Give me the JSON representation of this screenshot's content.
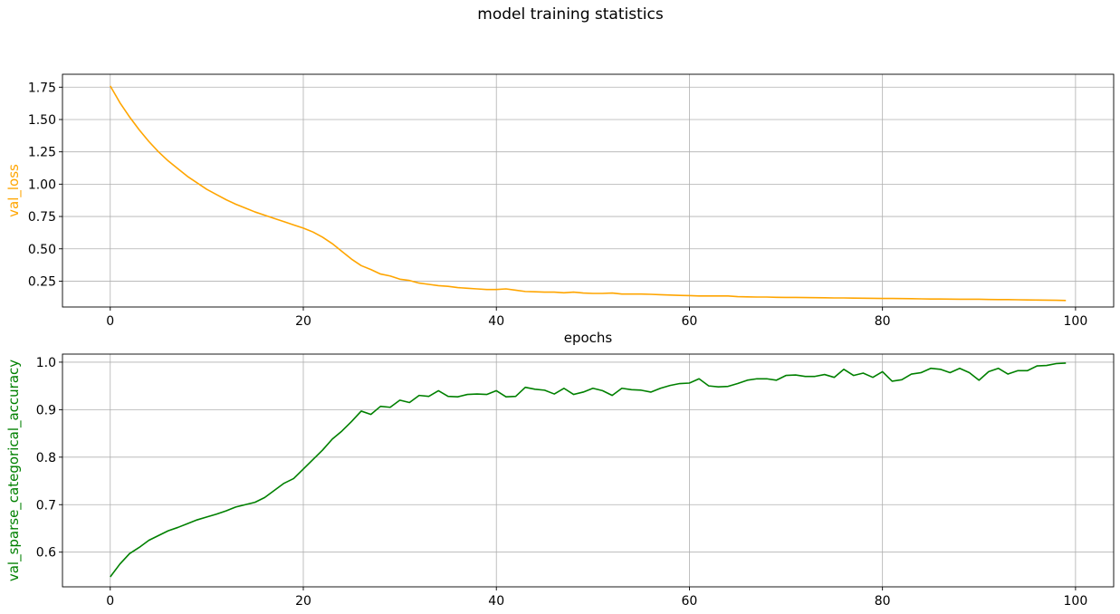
{
  "figure_title": "model training statistics",
  "chart_data": [
    {
      "type": "line",
      "title": "",
      "xlabel": "epochs",
      "ylabel": "val_loss",
      "xlim": [
        -4.95,
        103.95
      ],
      "ylim": [
        0.05,
        1.85
      ],
      "xticks": [
        0,
        20,
        40,
        60,
        80,
        100
      ],
      "yticks": [
        0.25,
        0.5,
        0.75,
        1.0,
        1.25,
        1.5,
        1.75
      ],
      "ytick_labels": [
        "0.25",
        "0.50",
        "0.75",
        "1.00",
        "1.25",
        "1.50",
        "1.75"
      ],
      "grid": true,
      "series": [
        {
          "name": "",
          "color": "#FFA500",
          "x": [
            0,
            1,
            2,
            3,
            4,
            5,
            6,
            7,
            8,
            9,
            10,
            11,
            12,
            13,
            14,
            15,
            16,
            17,
            18,
            19,
            20,
            21,
            22,
            23,
            24,
            25,
            26,
            27,
            28,
            29,
            30,
            31,
            32,
            33,
            34,
            35,
            36,
            37,
            38,
            39,
            40,
            41,
            42,
            43,
            44,
            45,
            46,
            47,
            48,
            49,
            50,
            51,
            52,
            53,
            54,
            55,
            56,
            57,
            58,
            59,
            60,
            61,
            62,
            63,
            64,
            65,
            66,
            67,
            68,
            69,
            70,
            71,
            72,
            73,
            74,
            75,
            76,
            77,
            78,
            79,
            80,
            81,
            82,
            83,
            84,
            85,
            86,
            87,
            88,
            89,
            90,
            91,
            92,
            93,
            94,
            95,
            96,
            97,
            98,
            99
          ],
          "y": [
            1.76,
            1.63,
            1.52,
            1.42,
            1.33,
            1.25,
            1.18,
            1.12,
            1.06,
            1.01,
            0.96,
            0.92,
            0.88,
            0.845,
            0.815,
            0.785,
            0.76,
            0.735,
            0.71,
            0.685,
            0.66,
            0.63,
            0.59,
            0.54,
            0.48,
            0.42,
            0.37,
            0.34,
            0.305,
            0.29,
            0.265,
            0.255,
            0.235,
            0.225,
            0.215,
            0.21,
            0.2,
            0.195,
            0.19,
            0.185,
            0.185,
            0.19,
            0.18,
            0.17,
            0.168,
            0.165,
            0.165,
            0.16,
            0.165,
            0.158,
            0.155,
            0.155,
            0.158,
            0.15,
            0.15,
            0.15,
            0.148,
            0.145,
            0.142,
            0.14,
            0.138,
            0.135,
            0.135,
            0.135,
            0.135,
            0.13,
            0.128,
            0.127,
            0.127,
            0.125,
            0.124,
            0.124,
            0.123,
            0.122,
            0.121,
            0.12,
            0.12,
            0.119,
            0.118,
            0.117,
            0.116,
            0.116,
            0.115,
            0.114,
            0.113,
            0.112,
            0.112,
            0.111,
            0.11,
            0.11,
            0.11,
            0.108,
            0.107,
            0.107,
            0.106,
            0.105,
            0.104,
            0.103,
            0.102,
            0.1
          ]
        }
      ]
    },
    {
      "type": "line",
      "title": "",
      "xlabel": "",
      "ylabel": "val_sparse_categorical_accuracy",
      "xlim": [
        -4.95,
        103.95
      ],
      "ylim": [
        0.527,
        1.017
      ],
      "xticks": [
        0,
        20,
        40,
        60,
        80,
        100
      ],
      "yticks": [
        0.6,
        0.7,
        0.8,
        0.9,
        1.0
      ],
      "ytick_labels": [
        "0.6",
        "0.7",
        "0.8",
        "0.9",
        "1.0"
      ],
      "grid": true,
      "series": [
        {
          "name": "",
          "color": "#008000",
          "x": [
            0,
            1,
            2,
            3,
            4,
            5,
            6,
            7,
            8,
            9,
            10,
            11,
            12,
            13,
            14,
            15,
            16,
            17,
            18,
            19,
            20,
            21,
            22,
            23,
            24,
            25,
            26,
            27,
            28,
            29,
            30,
            31,
            32,
            33,
            34,
            35,
            36,
            37,
            38,
            39,
            40,
            41,
            42,
            43,
            44,
            45,
            46,
            47,
            48,
            49,
            50,
            51,
            52,
            53,
            54,
            55,
            56,
            57,
            58,
            59,
            60,
            61,
            62,
            63,
            64,
            65,
            66,
            67,
            68,
            69,
            70,
            71,
            72,
            73,
            74,
            75,
            76,
            77,
            78,
            79,
            80,
            81,
            82,
            83,
            84,
            85,
            86,
            87,
            88,
            89,
            90,
            91,
            92,
            93,
            94,
            95,
            96,
            97,
            98,
            99
          ],
          "y": [
            0.548,
            0.575,
            0.597,
            0.61,
            0.625,
            0.635,
            0.645,
            0.652,
            0.66,
            0.668,
            0.674,
            0.68,
            0.687,
            0.695,
            0.7,
            0.705,
            0.715,
            0.73,
            0.745,
            0.755,
            0.775,
            0.795,
            0.815,
            0.838,
            0.855,
            0.875,
            0.897,
            0.89,
            0.907,
            0.905,
            0.92,
            0.915,
            0.93,
            0.928,
            0.94,
            0.928,
            0.927,
            0.932,
            0.933,
            0.932,
            0.94,
            0.927,
            0.928,
            0.947,
            0.943,
            0.941,
            0.933,
            0.945,
            0.932,
            0.937,
            0.945,
            0.94,
            0.93,
            0.945,
            0.942,
            0.941,
            0.937,
            0.945,
            0.951,
            0.955,
            0.956,
            0.965,
            0.95,
            0.948,
            0.949,
            0.955,
            0.962,
            0.965,
            0.965,
            0.962,
            0.972,
            0.973,
            0.97,
            0.97,
            0.974,
            0.968,
            0.985,
            0.972,
            0.977,
            0.968,
            0.98,
            0.96,
            0.963,
            0.975,
            0.978,
            0.987,
            0.985,
            0.978,
            0.987,
            0.978,
            0.962,
            0.98,
            0.987,
            0.975,
            0.982,
            0.982,
            0.992,
            0.993,
            0.997,
            0.998
          ]
        }
      ]
    }
  ]
}
